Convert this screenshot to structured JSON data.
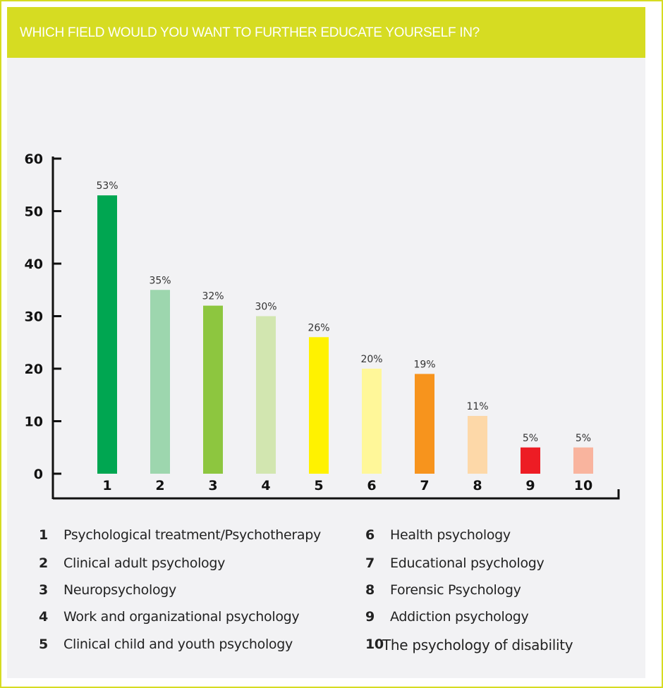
{
  "chart_data": {
    "type": "bar",
    "title": "WHICH FIELD WOULD YOU WANT TO FURTHER EDUCATE YOURSELF IN?",
    "categories": [
      "1",
      "2",
      "3",
      "4",
      "5",
      "6",
      "7",
      "8",
      "9",
      "10"
    ],
    "values": [
      53,
      35,
      32,
      30,
      26,
      20,
      19,
      11,
      5,
      5
    ],
    "data_labels": [
      "53%",
      "35%",
      "32%",
      "30%",
      "26%",
      "20%",
      "19%",
      "11%",
      "5%",
      "5%"
    ],
    "colors": [
      "#00a651",
      "#9dd6ae",
      "#8dc63f",
      "#d2e6b0",
      "#fff200",
      "#fff799",
      "#f7941d",
      "#fdd8a8",
      "#ed1c24",
      "#f9b49e"
    ],
    "ylim": [
      0,
      60
    ],
    "yticks": [
      0,
      10,
      20,
      30,
      40,
      50,
      60
    ],
    "grid": false,
    "xlabel": "",
    "ylabel": ""
  },
  "legend": [
    {
      "num": "1",
      "label": "Psychological treatment/Psychotherapy"
    },
    {
      "num": "2",
      "label": "Clinical adult psychology"
    },
    {
      "num": "3",
      "label": "Neuropsychology"
    },
    {
      "num": "4",
      "label": "Work and organizational psychology"
    },
    {
      "num": "5",
      "label": "Clinical child and youth psychology"
    },
    {
      "num": "6",
      "label": "Health psychology"
    },
    {
      "num": "7",
      "label": "Educational psychology"
    },
    {
      "num": "8",
      "label": "Forensic Psychology"
    },
    {
      "num": "9",
      "label": "Addiction psychology"
    },
    {
      "num": "10",
      "label": "The psychology of disability"
    }
  ],
  "colors": {
    "header": "#d6dc22",
    "panel": "#f2f2f4"
  }
}
